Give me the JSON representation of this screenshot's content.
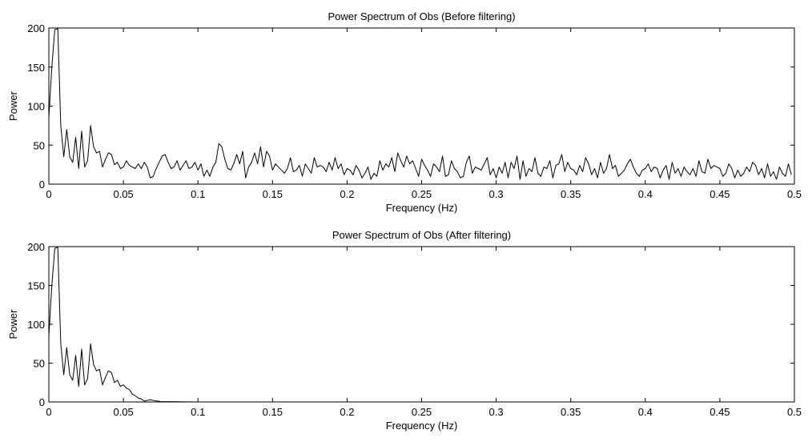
{
  "chart_data": [
    {
      "type": "line",
      "title": "Power Spectrum of Obs (Before filtering)",
      "xlabel": "Frequency (Hz)",
      "ylabel": "Power",
      "xlim": [
        0,
        0.5
      ],
      "ylim": [
        0,
        200
      ],
      "xticks": [
        0,
        0.05,
        0.1,
        0.15,
        0.2,
        0.25,
        0.3,
        0.35,
        0.4,
        0.45,
        0.5
      ],
      "xtick_labels": [
        "0",
        "0.05",
        "0.1",
        "0.15",
        "0.2",
        "0.25",
        "0.3",
        "0.35",
        "0.4",
        "0.45",
        "0.5"
      ],
      "yticks": [
        0,
        50,
        100,
        150,
        200
      ],
      "ytick_labels": [
        "0",
        "50",
        "100",
        "150",
        "200"
      ],
      "grid": false,
      "series": [
        {
          "x": [
            0,
            0.002,
            0.004,
            0.006,
            0.008,
            0.01,
            0.012,
            0.014,
            0.016,
            0.018,
            0.02,
            0.022,
            0.024,
            0.026,
            0.028,
            0.03,
            0.032,
            0.034,
            0.036,
            0.038,
            0.04,
            0.042,
            0.044,
            0.046,
            0.048,
            0.05,
            0.052,
            0.054,
            0.056,
            0.058,
            0.06,
            0.062,
            0.064,
            0.066,
            0.068,
            0.07,
            0.072,
            0.074,
            0.076,
            0.078,
            0.08,
            0.082,
            0.084,
            0.086,
            0.088,
            0.09,
            0.092,
            0.094,
            0.096,
            0.098,
            0.1,
            0.102,
            0.104,
            0.106,
            0.108,
            0.11,
            0.112,
            0.114,
            0.116,
            0.118,
            0.12,
            0.122,
            0.124,
            0.126,
            0.128,
            0.13,
            0.132,
            0.134,
            0.136,
            0.138,
            0.14,
            0.142,
            0.144,
            0.146,
            0.148,
            0.15,
            0.152,
            0.154,
            0.156,
            0.158,
            0.16,
            0.162,
            0.164,
            0.166,
            0.168,
            0.17,
            0.172,
            0.174,
            0.176,
            0.178,
            0.18,
            0.182,
            0.184,
            0.186,
            0.188,
            0.19,
            0.192,
            0.194,
            0.196,
            0.198,
            0.2,
            0.202,
            0.204,
            0.206,
            0.208,
            0.21,
            0.212,
            0.214,
            0.216,
            0.218,
            0.22,
            0.222,
            0.224,
            0.226,
            0.228,
            0.23,
            0.232,
            0.234,
            0.236,
            0.238,
            0.24,
            0.242,
            0.244,
            0.246,
            0.248,
            0.25,
            0.252,
            0.254,
            0.256,
            0.258,
            0.26,
            0.262,
            0.264,
            0.266,
            0.268,
            0.27,
            0.272,
            0.274,
            0.276,
            0.278,
            0.28,
            0.282,
            0.284,
            0.286,
            0.288,
            0.29,
            0.292,
            0.294,
            0.296,
            0.298,
            0.3,
            0.302,
            0.304,
            0.306,
            0.308,
            0.31,
            0.312,
            0.314,
            0.316,
            0.318,
            0.32,
            0.322,
            0.324,
            0.326,
            0.328,
            0.33,
            0.332,
            0.334,
            0.336,
            0.338,
            0.34,
            0.342,
            0.344,
            0.346,
            0.348,
            0.35,
            0.352,
            0.354,
            0.356,
            0.358,
            0.36,
            0.362,
            0.364,
            0.366,
            0.368,
            0.37,
            0.372,
            0.374,
            0.376,
            0.378,
            0.38,
            0.382,
            0.384,
            0.386,
            0.388,
            0.39,
            0.392,
            0.394,
            0.396,
            0.398,
            0.4,
            0.402,
            0.404,
            0.406,
            0.408,
            0.41,
            0.412,
            0.414,
            0.416,
            0.418,
            0.42,
            0.422,
            0.424,
            0.426,
            0.428,
            0.43,
            0.432,
            0.434,
            0.436,
            0.438,
            0.44,
            0.442,
            0.444,
            0.446,
            0.448,
            0.45,
            0.452,
            0.454,
            0.456,
            0.458,
            0.46,
            0.462,
            0.464,
            0.466,
            0.468,
            0.47,
            0.472,
            0.474,
            0.476,
            0.478,
            0.48,
            0.482,
            0.484,
            0.486,
            0.488,
            0.49,
            0.492,
            0.494,
            0.496,
            0.498
          ],
          "y": [
            85,
            150,
            198,
            199,
            75,
            35,
            70,
            35,
            28,
            60,
            20,
            68,
            22,
            30,
            75,
            48,
            40,
            42,
            22,
            32,
            40,
            38,
            25,
            28,
            20,
            22,
            30,
            24,
            22,
            20,
            26,
            20,
            28,
            22,
            8,
            10,
            20,
            28,
            36,
            38,
            28,
            20,
            22,
            30,
            18,
            24,
            30,
            20,
            22,
            28,
            18,
            26,
            10,
            18,
            10,
            22,
            28,
            52,
            48,
            32,
            20,
            18,
            26,
            38,
            26,
            42,
            8,
            22,
            28,
            40,
            26,
            48,
            22,
            42,
            36,
            18,
            26,
            22,
            18,
            14,
            20,
            34,
            16,
            18,
            24,
            10,
            26,
            20,
            14,
            34,
            22,
            24,
            22,
            16,
            28,
            18,
            34,
            20,
            26,
            12,
            20,
            18,
            12,
            24,
            18,
            8,
            14,
            22,
            6,
            14,
            10,
            30,
            18,
            26,
            22,
            34,
            16,
            40,
            30,
            22,
            36,
            26,
            30,
            20,
            10,
            32,
            24,
            18,
            10,
            26,
            22,
            16,
            36,
            10,
            12,
            30,
            20,
            16,
            8,
            10,
            28,
            36,
            14,
            22,
            20,
            18,
            26,
            34,
            12,
            20,
            8,
            22,
            14,
            28,
            8,
            28,
            20,
            36,
            6,
            30,
            10,
            20,
            16,
            34,
            14,
            10,
            22,
            20,
            30,
            8,
            24,
            26,
            38,
            16,
            28,
            20,
            18,
            12,
            24,
            16,
            34,
            26,
            12,
            20,
            8,
            28,
            14,
            20,
            38,
            20,
            24,
            10,
            14,
            18,
            26,
            32,
            22,
            14,
            10,
            18,
            20,
            26,
            16,
            22,
            20,
            8,
            18,
            24,
            6,
            28,
            14,
            20,
            10,
            22,
            16,
            12,
            20,
            10,
            30,
            16,
            14,
            32,
            20,
            24,
            22,
            20,
            10,
            14,
            26,
            20,
            8,
            18,
            10,
            14,
            22,
            16,
            28,
            24,
            12,
            20,
            8,
            26,
            10,
            16,
            6,
            22,
            14,
            10,
            26,
            12
          ],
          "color": "#000000"
        }
      ]
    },
    {
      "type": "line",
      "title": "Power Spectrum of Obs (After filtering)",
      "xlabel": "Frequency (Hz)",
      "ylabel": "Power",
      "xlim": [
        0,
        0.5
      ],
      "ylim": [
        0,
        200
      ],
      "xticks": [
        0,
        0.05,
        0.1,
        0.15,
        0.2,
        0.25,
        0.3,
        0.35,
        0.4,
        0.45,
        0.5
      ],
      "xtick_labels": [
        "0",
        "0.05",
        "0.1",
        "0.15",
        "0.2",
        "0.25",
        "0.3",
        "0.35",
        "0.4",
        "0.45",
        "0.5"
      ],
      "yticks": [
        0,
        50,
        100,
        150,
        200
      ],
      "ytick_labels": [
        "0",
        "50",
        "100",
        "150",
        "200"
      ],
      "grid": false,
      "series": [
        {
          "x": [
            0,
            0.002,
            0.004,
            0.006,
            0.008,
            0.01,
            0.012,
            0.014,
            0.016,
            0.018,
            0.02,
            0.022,
            0.024,
            0.026,
            0.028,
            0.03,
            0.032,
            0.034,
            0.036,
            0.038,
            0.04,
            0.042,
            0.044,
            0.046,
            0.048,
            0.05,
            0.052,
            0.054,
            0.056,
            0.058,
            0.06,
            0.062,
            0.064,
            0.066,
            0.068,
            0.07,
            0.075,
            0.1,
            0.15,
            0.2,
            0.25,
            0.3,
            0.35,
            0.4,
            0.45,
            0.498
          ],
          "y": [
            85,
            150,
            198,
            199,
            75,
            35,
            70,
            35,
            28,
            60,
            20,
            68,
            22,
            30,
            75,
            48,
            40,
            42,
            22,
            32,
            40,
            38,
            25,
            28,
            20,
            22,
            18,
            16,
            10,
            8,
            5,
            4,
            1,
            2,
            3,
            2,
            0.5,
            0,
            0,
            0,
            0,
            0,
            0,
            0,
            0,
            0
          ],
          "color": "#000000"
        }
      ]
    }
  ]
}
